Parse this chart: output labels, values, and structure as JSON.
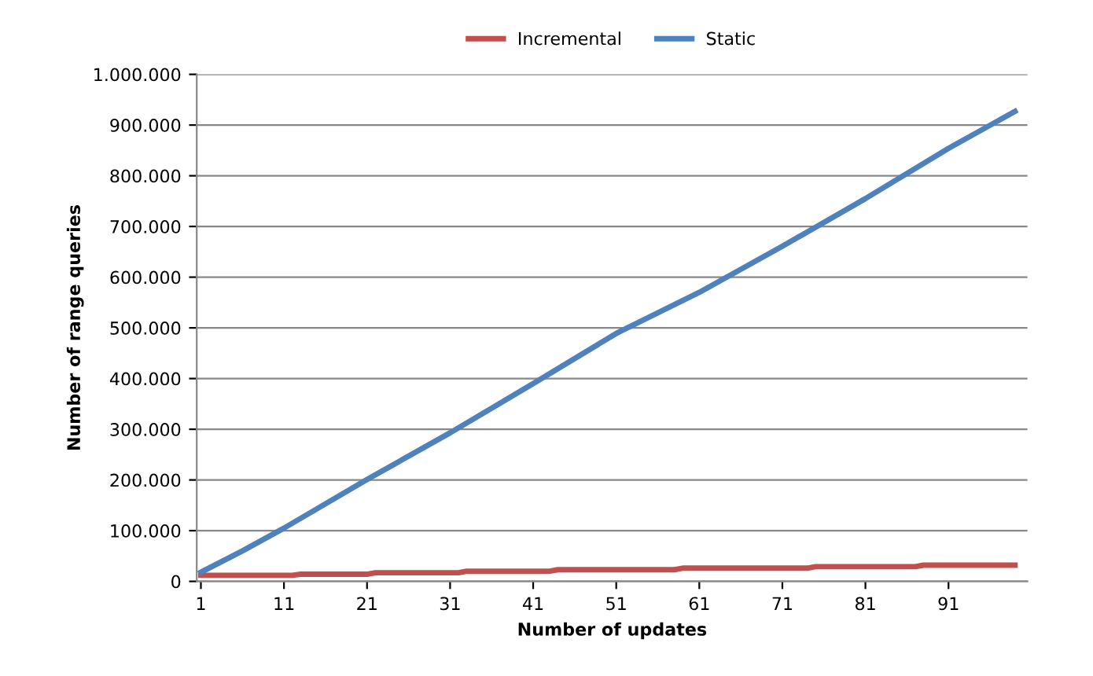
{
  "chart_data": {
    "type": "line",
    "xlabel": "Number of updates",
    "ylabel": "Number of range queries",
    "xlim": [
      0.5,
      100.5
    ],
    "xticks": [
      1,
      11,
      21,
      31,
      41,
      51,
      61,
      71,
      81,
      91
    ],
    "ylim": [
      0,
      1000000
    ],
    "yticks": [
      {
        "value": 0,
        "label": "0"
      },
      {
        "value": 100000,
        "label": "100.000"
      },
      {
        "value": 200000,
        "label": "200.000"
      },
      {
        "value": 300000,
        "label": "300.000"
      },
      {
        "value": 400000,
        "label": "400.000"
      },
      {
        "value": 500000,
        "label": "500.000"
      },
      {
        "value": 600000,
        "label": "600.000"
      },
      {
        "value": 700000,
        "label": "700.000"
      },
      {
        "value": 800000,
        "label": "800.000"
      },
      {
        "value": 900000,
        "label": "900.000"
      },
      {
        "value": 1000000,
        "label": "1.000.000"
      }
    ],
    "grid": "y",
    "legend": "top",
    "marker": "none",
    "line_style": "solid",
    "series": [
      {
        "name": "Incremental",
        "color": "#c0504d",
        "x": [
          1,
          12,
          13,
          21,
          22,
          32,
          33,
          43,
          44,
          58,
          59,
          74,
          75,
          87,
          88,
          99
        ],
        "values": [
          12000,
          12000,
          14000,
          14000,
          17000,
          17000,
          20000,
          20000,
          23000,
          23000,
          26000,
          26000,
          29000,
          29000,
          32000,
          32000
        ]
      },
      {
        "name": "Static",
        "color": "#4f81bd",
        "x": [
          1,
          6,
          11,
          21,
          31,
          41,
          51,
          61,
          71,
          81,
          91,
          99
        ],
        "values": [
          18000,
          60000,
          105000,
          201000,
          293000,
          390000,
          489000,
          570000,
          661000,
          755000,
          854000,
          927000
        ]
      }
    ]
  }
}
